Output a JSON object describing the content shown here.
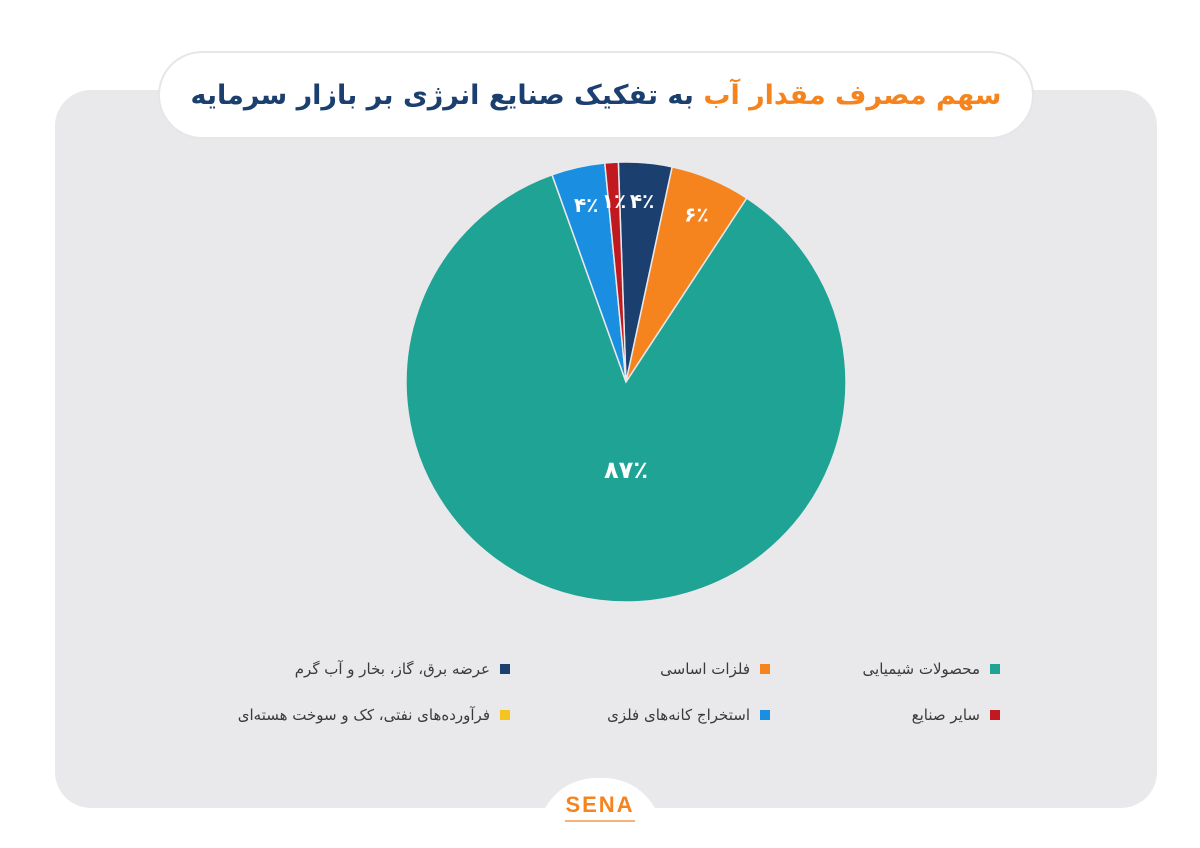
{
  "header": {
    "title_accent": "سهم مصرف مقدار آب",
    "title_main": "به تفکیک صنایع انرژی بر بازار سرمایه",
    "quote_open": "”",
    "quote_close": "“"
  },
  "logo": {
    "text": "SENA"
  },
  "colors": {
    "card_bg": "#e9e8ea",
    "teal": "#1fa394",
    "orange": "#f5841f",
    "navy": "#1b3f6f",
    "red": "#c0191f",
    "blue": "#1a8ee0",
    "yellow": "#f4c41f"
  },
  "chart_data": {
    "type": "pie",
    "slices": [
      {
        "label": "عرضه برق، گاز، بخار و آب گرم",
        "value": 4,
        "display": "۴٪",
        "color": "#1b3f6f"
      },
      {
        "label": "فلزات اساسی",
        "value": 6,
        "display": "۶٪",
        "color": "#f5841f"
      },
      {
        "label": "محصولات شیمیایی",
        "value": 87,
        "display": "۸۷٪",
        "color": "#1fa394"
      },
      {
        "label": "استخراج کانه‌های فلزی",
        "value": 4,
        "display": "۴٪",
        "color": "#1a8ee0"
      },
      {
        "label": "سایر صنایع",
        "value": 1,
        "display": "۱٪",
        "color": "#c0191f"
      }
    ],
    "legend": [
      {
        "label": "محصولات شیمیایی",
        "color": "#1fa394"
      },
      {
        "label": "فلزات اساسی",
        "color": "#f5841f"
      },
      {
        "label": "عرضه برق، گاز، بخار و آب گرم",
        "color": "#1b3f6f"
      },
      {
        "label": "سایر صنایع",
        "color": "#c0191f"
      },
      {
        "label": "استخراج کانه‌های فلزی",
        "color": "#1a8ee0"
      },
      {
        "label": "فرآورده‌های نفتی، کک و سوخت هسته‌ای",
        "color": "#f4c41f"
      }
    ],
    "legend_position": "bottom"
  }
}
